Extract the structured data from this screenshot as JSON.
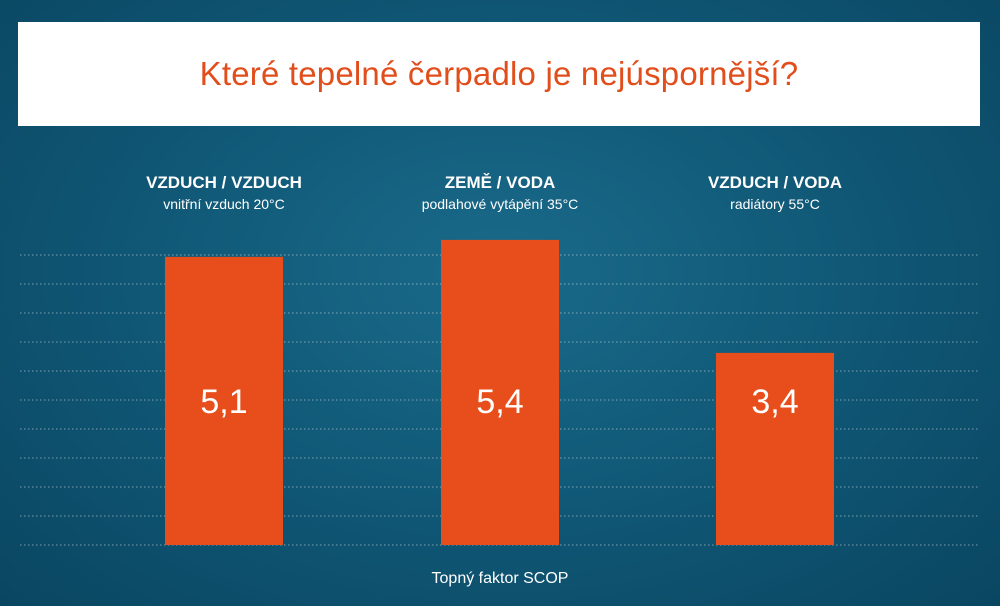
{
  "chart_data": {
    "type": "bar",
    "title": "Které tepelné čerpadlo je nejúspornější?",
    "categories": [
      {
        "name": "VZDUCH / VZDUCH",
        "sub": "vnitřní vzduch 20°C"
      },
      {
        "name": "ZEMĚ / VODA",
        "sub": "podlahové vytápění 35°C"
      },
      {
        "name": "VZDUCH / VODA",
        "sub": "radiátory 55°C"
      }
    ],
    "values": [
      5.1,
      5.4,
      3.4
    ],
    "value_labels": [
      "5,1",
      "5,4",
      "3,4"
    ],
    "xlabel": "Topný faktor SCOP",
    "ylabel": "",
    "ylim": [
      0,
      5.6
    ],
    "grid": true,
    "grid_style": "dotted",
    "bar_color": "#e84e1b",
    "title_color": "#e14e1c",
    "background_color": "#0f5674",
    "title_box_color": "#ffffff"
  }
}
